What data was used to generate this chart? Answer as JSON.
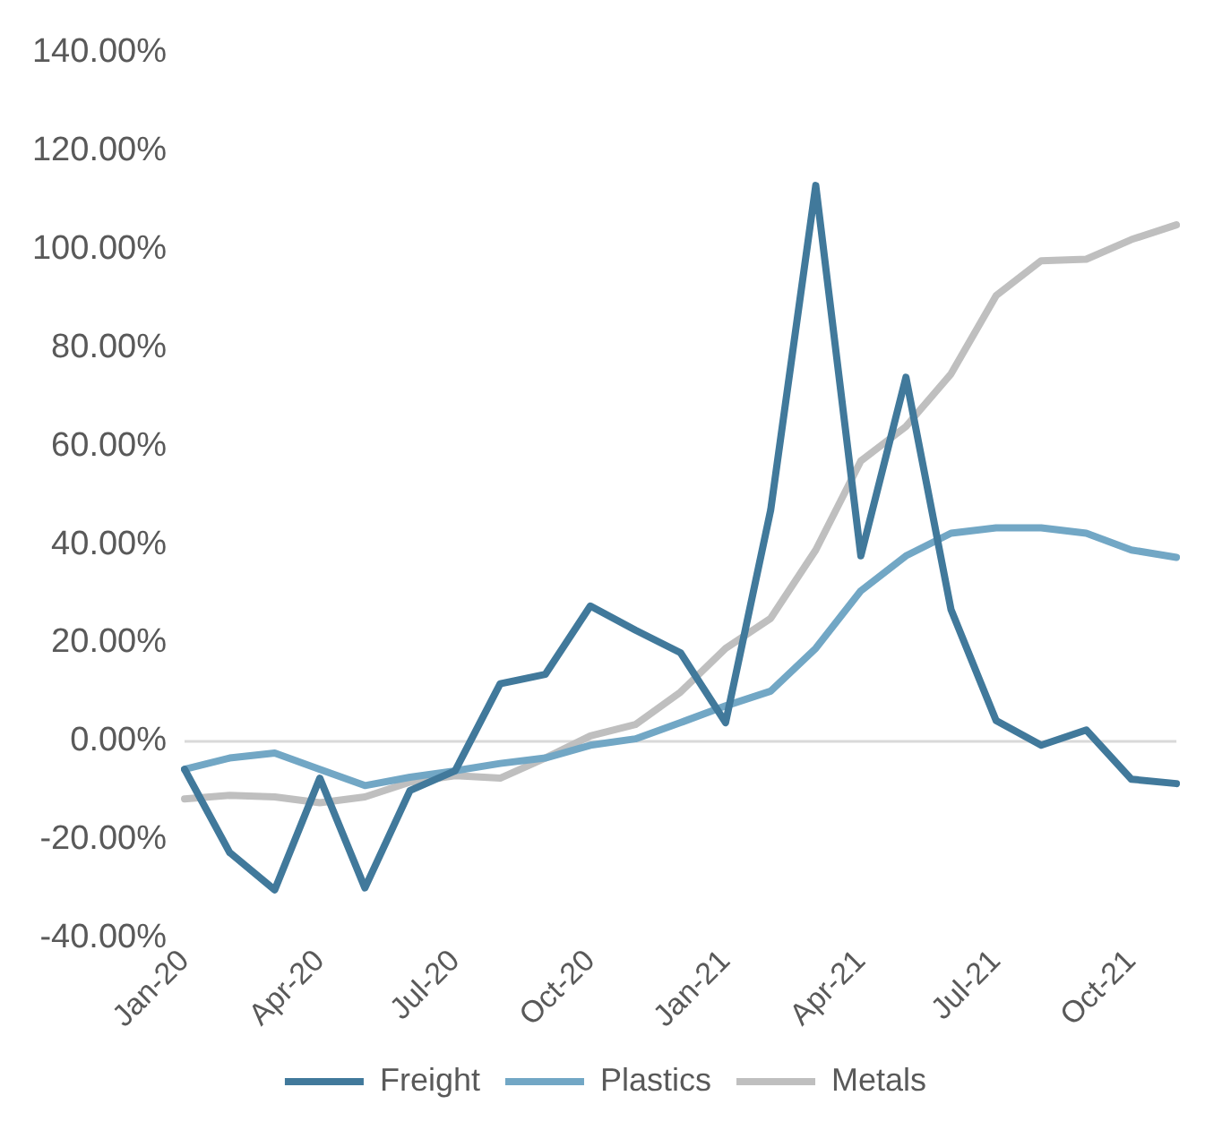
{
  "chart_data": {
    "type": "line",
    "categories": [
      "Jan-20",
      null,
      null,
      "Apr-20",
      null,
      null,
      "Jul-20",
      null,
      null,
      "Oct-20",
      null,
      null,
      "Jan-21",
      null,
      null,
      "Apr-21",
      null,
      null,
      "Jul-21",
      null,
      null,
      "Oct-21",
      null
    ],
    "series": [
      {
        "name": "Freight",
        "color": "#41799b",
        "values": [
          -5.7,
          -22.6,
          -30.2,
          -7.5,
          -29.8,
          -10,
          -6,
          11.7,
          13.6,
          27.5,
          22.6,
          18,
          3.8,
          47,
          113,
          37.7,
          74,
          26.8,
          4.2,
          -0.8,
          2.3,
          -7.7,
          -8.6
        ]
      },
      {
        "name": "Plastics",
        "color": "#72a7c5",
        "values": [
          -5.7,
          -3.4,
          -2.4,
          -5.7,
          -9,
          -7.3,
          -6,
          -4.5,
          -3.4,
          -0.8,
          0.5,
          3.8,
          7.2,
          10.2,
          18.9,
          30.6,
          37.7,
          42.3,
          43.4,
          43.4,
          42.3,
          38.9,
          37.4
        ]
      },
      {
        "name": "Metals",
        "color": "#bfbfbf",
        "values": [
          -11.7,
          -11,
          -11.3,
          -12.5,
          -11.3,
          -8.3,
          -7,
          -7.5,
          -3.4,
          1.1,
          3.4,
          10,
          18.9,
          25,
          38.9,
          57,
          64,
          74.7,
          90.6,
          97.7,
          98,
          102,
          105
        ]
      }
    ],
    "ylim": [
      -40,
      140
    ],
    "yticks": [
      {
        "value": -40,
        "label": "-40.00%"
      },
      {
        "value": -20,
        "label": "-20.00%"
      },
      {
        "value": 0,
        "label": "0.00%"
      },
      {
        "value": 20,
        "label": "20.00%"
      },
      {
        "value": 40,
        "label": "40.00%"
      },
      {
        "value": 60,
        "label": "60.00%"
      },
      {
        "value": 80,
        "label": "80.00%"
      },
      {
        "value": 100,
        "label": "100.00%"
      },
      {
        "value": 120,
        "label": "120.00%"
      },
      {
        "value": 140,
        "label": "140.00%"
      }
    ],
    "ref_lines": [
      {
        "axis": "y",
        "value": 0,
        "color": "#d9d9d9"
      }
    ],
    "grid": false,
    "legend": "bottom",
    "marker": "none",
    "line_style": "solid"
  }
}
